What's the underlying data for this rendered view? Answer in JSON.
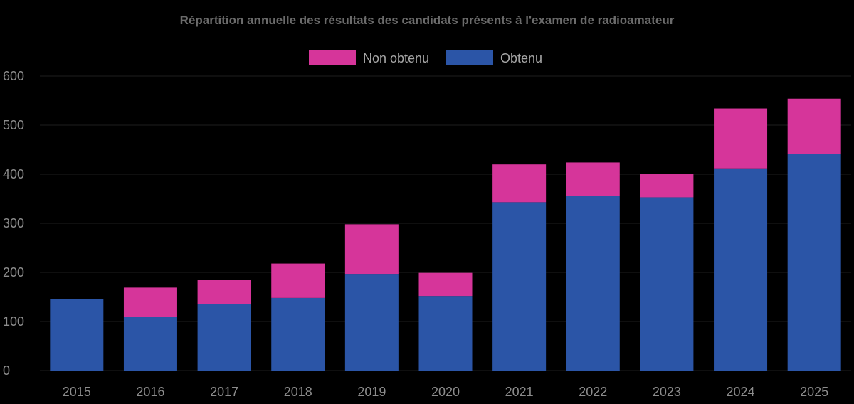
{
  "chart_data": {
    "type": "bar",
    "stacked": true,
    "title": "Répartition annuelle des résultats des candidats présents à l'examen de radioamateur",
    "xlabel": "",
    "ylabel": "",
    "categories": [
      "2015",
      "2016",
      "2017",
      "2018",
      "2019",
      "2020",
      "2021",
      "2022",
      "2023",
      "2024",
      "2025"
    ],
    "series": [
      {
        "name": "Obtenu",
        "color": "#2b55a7",
        "values": [
          146,
          109,
          136,
          148,
          197,
          152,
          343,
          356,
          353,
          412,
          441
        ]
      },
      {
        "name": "Non obtenu",
        "color": "#d6359a",
        "values": [
          0,
          60,
          49,
          70,
          101,
          47,
          77,
          68,
          48,
          122,
          113
        ]
      }
    ],
    "legend_order": [
      "Non obtenu",
      "Obtenu"
    ],
    "legend_position": "top",
    "ylim": [
      0,
      600
    ],
    "yticks": [
      0,
      100,
      200,
      300,
      400,
      500,
      600
    ],
    "grid": true
  }
}
